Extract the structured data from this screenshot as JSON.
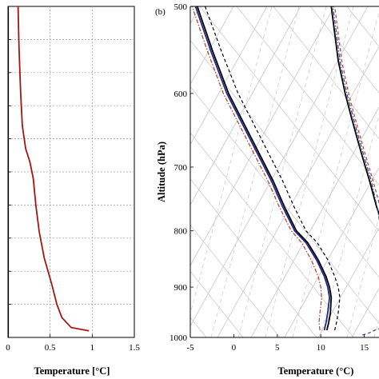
{
  "chart_data": [
    {
      "type": "line",
      "panel": "a",
      "xlabel": "Temperature [°C]",
      "xlim": [
        0,
        1.5
      ],
      "xticks": [
        "0",
        "0.5",
        "1",
        "1.5"
      ],
      "ylim": [
        1000,
        500
      ],
      "grid": true,
      "series": [
        {
          "color": "#000000",
          "x": [
            0,
            0
          ],
          "y": [
            1000,
            500
          ]
        },
        {
          "color": "#a31515",
          "x": [
            0.12,
            0.13,
            0.15,
            0.17,
            0.21,
            0.26,
            0.3,
            0.33,
            0.37,
            0.43,
            0.52,
            0.58,
            0.64,
            0.75,
            0.96
          ],
          "y": [
            500,
            560,
            630,
            680,
            715,
            735,
            760,
            800,
            840,
            880,
            920,
            950,
            970,
            985,
            990
          ]
        }
      ]
    },
    {
      "type": "line",
      "panel": "b",
      "panel_label": "(b)",
      "xlabel": "Temperature (°C)",
      "ylabel": "Altitude (hPa)",
      "xlim": [
        -5,
        17
      ],
      "ylim": [
        1000,
        500
      ],
      "xticks": [
        "-5",
        "0",
        "5",
        "10",
        "15"
      ],
      "yticks": [
        "500",
        "600",
        "700",
        "800",
        "900",
        "1000"
      ],
      "y_scale": "log",
      "background": "skew-T diagram with grey isotherms, dry and moist adiabats, dashed mixing-ratio lines",
      "series": [
        {
          "color": "#000000",
          "style": "solid",
          "x": [
            10.7,
            10.9,
            11.1,
            11.2,
            11.0,
            10.6,
            9.7,
            8.5,
            7.2,
            5.8,
            4.5,
            2.9,
            1.2,
            -0.6,
            -2.4,
            -4.2
          ],
          "y": [
            985,
            970,
            950,
            920,
            900,
            880,
            850,
            820,
            800,
            760,
            720,
            680,
            640,
            600,
            550,
            500
          ]
        },
        {
          "color": "#1f2a7a",
          "style": "solid",
          "x": [
            10.4,
            10.6,
            10.8,
            11.0,
            10.8,
            10.4,
            9.5,
            8.3,
            7.0,
            5.6,
            4.3,
            2.7,
            1.0,
            -0.8,
            -2.6,
            -4.4
          ],
          "y": [
            985,
            970,
            950,
            920,
            900,
            880,
            850,
            820,
            800,
            760,
            720,
            680,
            640,
            600,
            550,
            500
          ]
        },
        {
          "color": "#c0392b",
          "style": "dashdot",
          "x": [
            9.9,
            9.8,
            9.9,
            10.1,
            10.0,
            9.7,
            8.9,
            7.8,
            6.6,
            5.2,
            3.9,
            2.3,
            0.6,
            -1.2,
            -3.0,
            -4.8
          ],
          "y": [
            985,
            970,
            950,
            920,
            900,
            880,
            850,
            820,
            800,
            760,
            720,
            680,
            640,
            600,
            550,
            500
          ]
        },
        {
          "color": "#000000",
          "style": "dashed",
          "x": [
            11.6,
            11.8,
            12.0,
            12.2,
            12.0,
            11.6,
            10.8,
            9.6,
            8.3,
            6.9,
            5.6,
            4.0,
            2.3,
            0.5,
            -1.4,
            -3.3
          ],
          "y": [
            985,
            970,
            950,
            920,
            900,
            880,
            850,
            820,
            800,
            760,
            720,
            680,
            640,
            600,
            550,
            500
          ]
        },
        {
          "color": "#000000",
          "style": "solid",
          "x": [
            17.0,
            16.4,
            15.6,
            14.9,
            14.2,
            13.5,
            12.8,
            12.0,
            11.2
          ],
          "y": [
            785,
            760,
            720,
            690,
            660,
            630,
            600,
            560,
            500
          ]
        },
        {
          "color": "#c0392b",
          "style": "dashed",
          "x": [
            17.0,
            16.8,
            16.0,
            15.3,
            14.6,
            13.9,
            13.2,
            12.4,
            11.6
          ],
          "y": [
            800,
            760,
            720,
            690,
            660,
            630,
            600,
            560,
            500
          ]
        },
        {
          "color": "#2e3f9e",
          "style": "dashdot",
          "x": [
            17.0,
            16.6,
            15.8,
            15.1,
            14.4,
            13.7,
            13.0,
            12.2,
            11.4
          ],
          "y": [
            810,
            770,
            720,
            690,
            660,
            630,
            600,
            560,
            500
          ]
        },
        {
          "color": "#2e3f9e",
          "style": "dashed",
          "x": [
            14.8,
            15.4,
            16.2,
            17.0
          ],
          "y": [
            995,
            992,
            985,
            980
          ]
        }
      ]
    }
  ]
}
